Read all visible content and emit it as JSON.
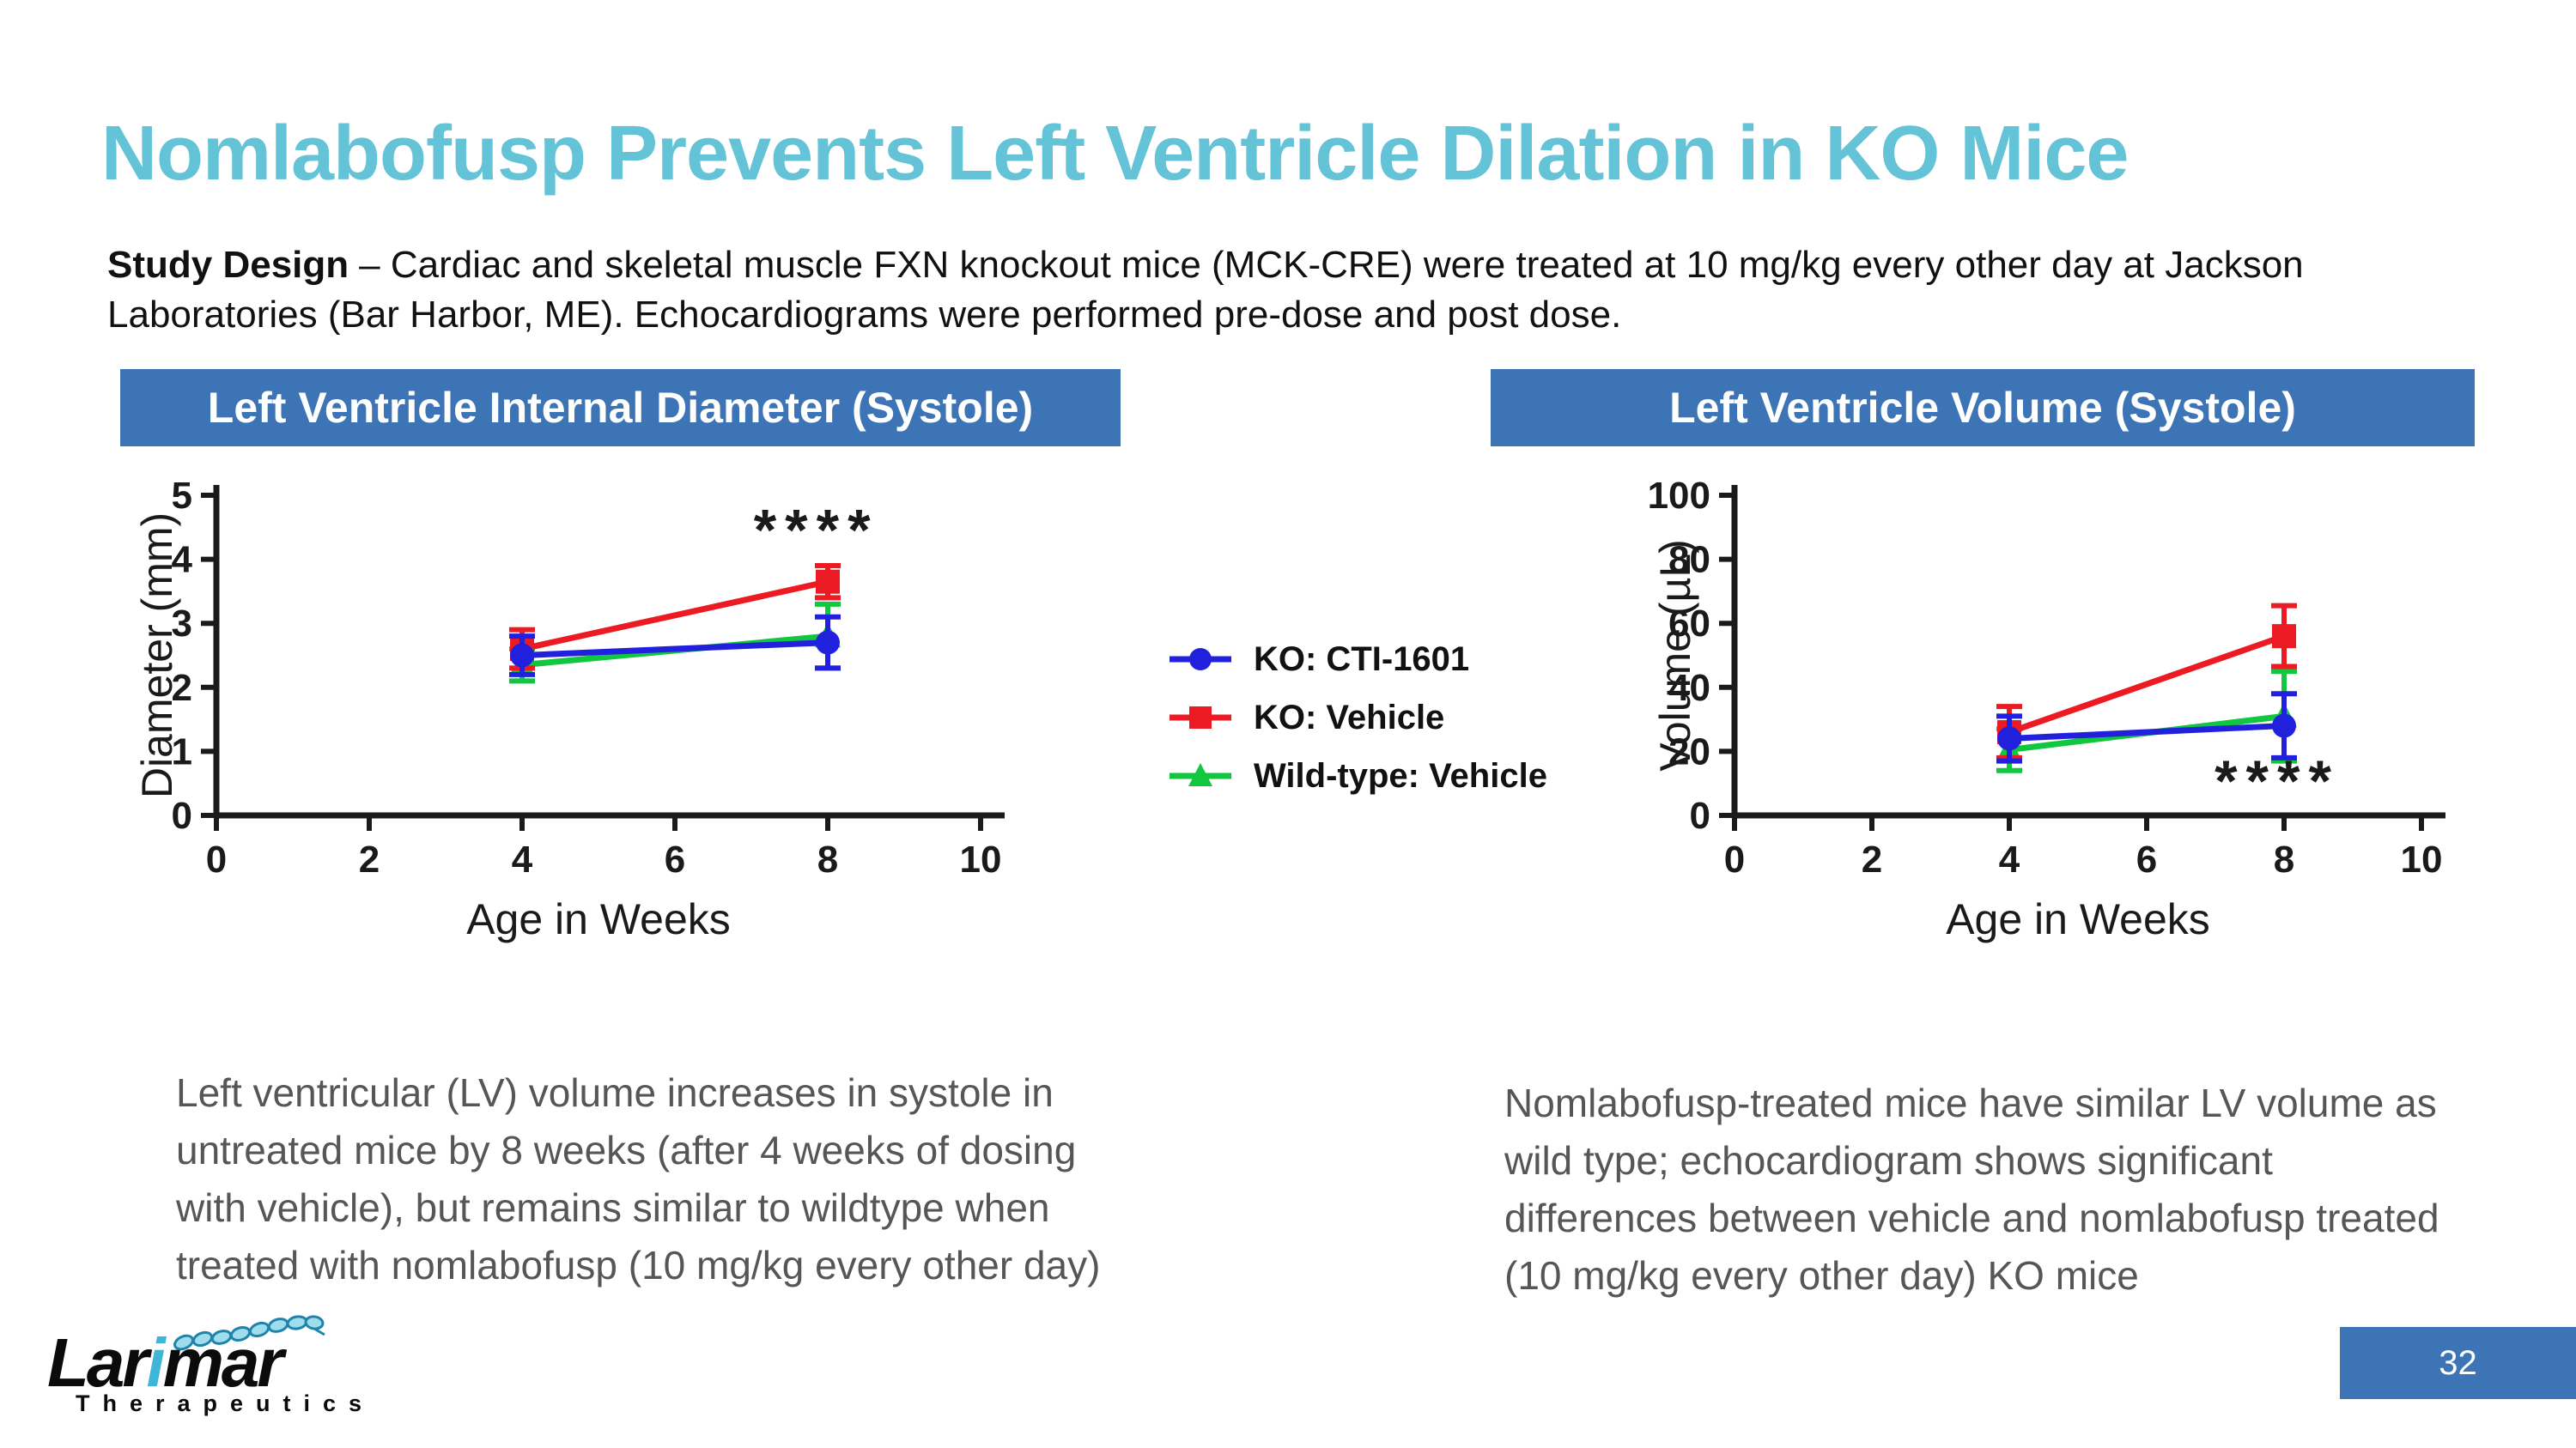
{
  "slide": {
    "title": "Nomlabofusp Prevents Left Ventricle Dilation in KO Mice",
    "page_number": "32"
  },
  "study_design": {
    "label": "Study Design",
    "line1_rest": "– Cardiac and skeletal muscle FXN knockout mice (MCK-CRE) were treated at 10 mg/kg every other day at Jackson",
    "line2": "Laboratories (Bar Harbor, ME). Echocardiograms were performed pre-dose and post dose."
  },
  "panels": {
    "left": {
      "header": "Left Ventricle Internal Diameter (Systole)",
      "caption": [
        "Left ventricular (LV) volume increases in systole in",
        "untreated mice by 8 weeks (after 4 weeks of dosing",
        "with vehicle), but remains similar to wildtype when",
        "treated with nomlabofusp (10 mg/kg every other day)"
      ]
    },
    "right": {
      "header": "Left Ventricle Volume (Systole)",
      "caption": [
        "Nomlabofusp-treated mice have similar LV volume as",
        "wild type; echocardiogram shows significant",
        "differences between vehicle and nomlabofusp treated",
        "(10 mg/kg every other day) KO mice"
      ]
    }
  },
  "logo": {
    "word_part1": "Lar",
    "word_accent": "i",
    "word_part2": "mar",
    "tagline": "Therapeutics"
  },
  "colors": {
    "banner_blue": "#3C74B5",
    "title_teal": "#64C3D6",
    "series_blue": "#2020DD",
    "series_red": "#EC1B23",
    "series_green": "#12C740",
    "caption_gray": "#565656",
    "axis_black": "#1A1A1A",
    "logo_teal": "#3FB5D8"
  },
  "chart_data": [
    {
      "type": "line",
      "title": "Left Ventricle Internal Diameter (Systole)",
      "xlabel": "Age in Weeks",
      "ylabel": "Diameter (mm)",
      "xlim": [
        0,
        10
      ],
      "ylim": [
        0,
        5
      ],
      "xticks": [
        0,
        2,
        4,
        6,
        8,
        10
      ],
      "yticks": [
        0,
        1,
        2,
        3,
        4,
        5
      ],
      "x": [
        4,
        8
      ],
      "series": [
        {
          "name": "KO: CTI-1601",
          "color": "#2020DD",
          "marker": "circle",
          "values": [
            2.5,
            2.7
          ],
          "errors": [
            0.3,
            0.4
          ]
        },
        {
          "name": "KO: Vehicle",
          "color": "#EC1B23",
          "marker": "square",
          "values": [
            2.6,
            3.65
          ],
          "errors": [
            0.3,
            0.25
          ]
        },
        {
          "name": "Wild-type: Vehicle",
          "color": "#12C740",
          "marker": "triangle",
          "values": [
            2.35,
            2.8
          ],
          "errors": [
            0.25,
            0.5
          ]
        }
      ],
      "annotation": {
        "text": "****",
        "x": 7.85,
        "y": 4.15
      },
      "grid": false,
      "legend_position": "center-between-panels"
    },
    {
      "type": "line",
      "title": "Left Ventricle Volume (Systole)",
      "xlabel": "Age in Weeks",
      "ylabel": "Volume (µL)",
      "xlim": [
        0,
        10
      ],
      "ylim": [
        0,
        100
      ],
      "xticks": [
        0,
        2,
        4,
        6,
        8,
        10
      ],
      "yticks": [
        0,
        20,
        40,
        60,
        80,
        100
      ],
      "x": [
        4,
        8
      ],
      "series": [
        {
          "name": "KO: CTI-1601",
          "color": "#2020DD",
          "marker": "circle",
          "values": [
            24,
            28
          ],
          "errors": [
            7,
            10
          ]
        },
        {
          "name": "KO: Vehicle",
          "color": "#EC1B23",
          "marker": "square",
          "values": [
            26,
            56
          ],
          "errors": [
            8,
            9.5
          ]
        },
        {
          "name": "Wild-type: Vehicle",
          "color": "#12C740",
          "marker": "triangle",
          "values": [
            20.5,
            31
          ],
          "errors": [
            6.5,
            14
          ]
        }
      ],
      "annotation": {
        "text": "****",
        "x": 7.9,
        "y": 4.5
      },
      "grid": false,
      "legend_position": "center-between-panels"
    }
  ]
}
